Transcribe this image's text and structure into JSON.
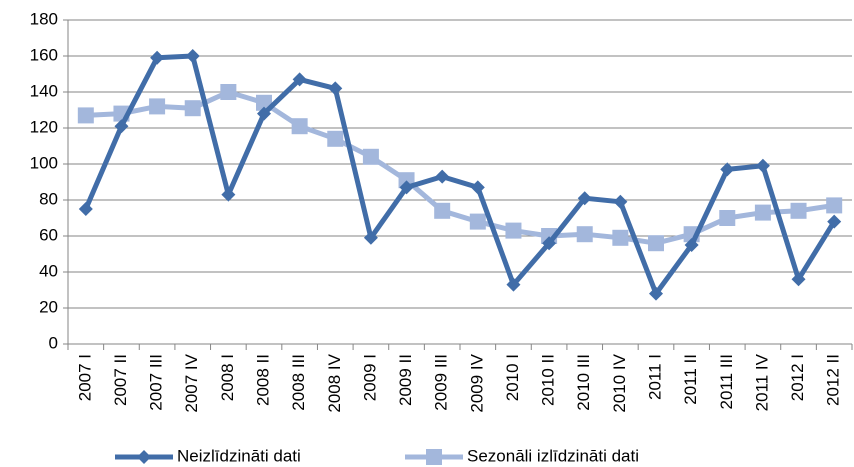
{
  "chart_data": {
    "type": "line",
    "categories": [
      "2007 I",
      "2007 II",
      "2007 III",
      "2007 IV",
      "2008 I",
      "2008 II",
      "2008 III",
      "2008 IV",
      "2009 I",
      "2009 II",
      "2009 III",
      "2009 IV",
      "2010 I",
      "2010 II",
      "2010 III",
      "2010 IV",
      "2011 I",
      "2011 II",
      "2011 III",
      "2011 IV",
      "2012 I",
      "2012 II"
    ],
    "series": [
      {
        "name": "Neizlīdzināti dati",
        "color": "#416da8",
        "marker": "diamond",
        "values": [
          75,
          121,
          159,
          160,
          83,
          128,
          147,
          142,
          59,
          87,
          93,
          87,
          33,
          56,
          81,
          79,
          28,
          55,
          97,
          99,
          36,
          68
        ]
      },
      {
        "name": "Sezonāli izlīdzināti dati",
        "color": "#a3b7dc",
        "marker": "square",
        "values": [
          127,
          128,
          132,
          131,
          140,
          134,
          121,
          114,
          104,
          91,
          74,
          68,
          63,
          60,
          61,
          59,
          56,
          61,
          70,
          73,
          74,
          77
        ]
      }
    ],
    "ylim": [
      0,
      180
    ],
    "yticks": [
      0,
      20,
      40,
      60,
      80,
      100,
      120,
      140,
      160,
      180
    ],
    "grid": true
  }
}
